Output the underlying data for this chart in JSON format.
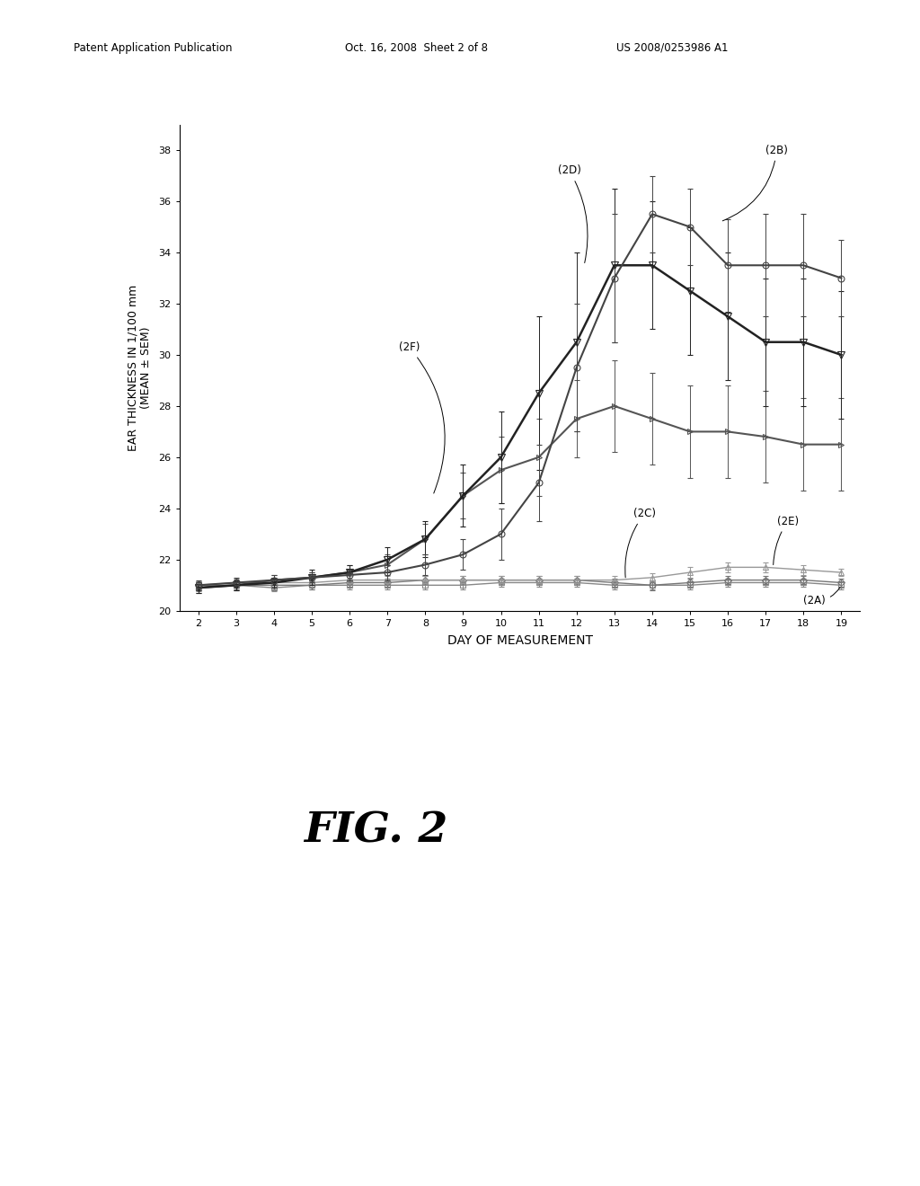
{
  "days": [
    2,
    3,
    4,
    5,
    6,
    7,
    8,
    9,
    10,
    11,
    12,
    13,
    14,
    15,
    16,
    17,
    18,
    19
  ],
  "series": {
    "2A": {
      "values": [
        20.9,
        21.0,
        20.9,
        21.0,
        21.0,
        21.0,
        21.0,
        21.0,
        21.1,
        21.1,
        21.1,
        21.0,
        21.0,
        21.0,
        21.1,
        21.1,
        21.1,
        21.0
      ],
      "errors": [
        0.15,
        0.15,
        0.15,
        0.15,
        0.15,
        0.15,
        0.15,
        0.15,
        0.15,
        0.15,
        0.15,
        0.15,
        0.15,
        0.15,
        0.15,
        0.15,
        0.15,
        0.15
      ],
      "marker": "s",
      "color": "#888888",
      "linewidth": 1.0,
      "markersize": 4,
      "label": "(2A)"
    },
    "2B": {
      "values": [
        21.0,
        21.1,
        21.2,
        21.3,
        21.4,
        21.5,
        21.8,
        22.2,
        23.0,
        25.0,
        29.5,
        33.0,
        35.5,
        35.0,
        33.5,
        33.5,
        33.5,
        33.0
      ],
      "errors": [
        0.2,
        0.2,
        0.2,
        0.2,
        0.2,
        0.3,
        0.4,
        0.6,
        1.0,
        1.5,
        2.5,
        2.5,
        1.5,
        1.5,
        1.8,
        2.0,
        2.0,
        1.5
      ],
      "marker": "o",
      "color": "#444444",
      "linewidth": 1.5,
      "markersize": 5,
      "label": "(2B)"
    },
    "2C": {
      "values": [
        21.0,
        21.0,
        21.0,
        21.0,
        21.1,
        21.1,
        21.2,
        21.2,
        21.2,
        21.2,
        21.2,
        21.1,
        21.0,
        21.1,
        21.2,
        21.2,
        21.2,
        21.1
      ],
      "errors": [
        0.15,
        0.15,
        0.15,
        0.15,
        0.15,
        0.15,
        0.15,
        0.15,
        0.15,
        0.15,
        0.15,
        0.15,
        0.2,
        0.15,
        0.15,
        0.15,
        0.15,
        0.15
      ],
      "marker": "D",
      "color": "#777777",
      "linewidth": 1.0,
      "markersize": 4,
      "label": "(2C)"
    },
    "2D": {
      "values": [
        20.9,
        21.0,
        21.1,
        21.3,
        21.5,
        22.0,
        22.8,
        24.5,
        26.0,
        28.5,
        30.5,
        33.5,
        33.5,
        32.5,
        31.5,
        30.5,
        30.5,
        30.0
      ],
      "errors": [
        0.2,
        0.2,
        0.2,
        0.3,
        0.3,
        0.5,
        0.7,
        1.2,
        1.8,
        3.0,
        3.5,
        3.0,
        2.5,
        2.5,
        2.5,
        2.5,
        2.5,
        2.5
      ],
      "marker": "v",
      "color": "#222222",
      "linewidth": 1.8,
      "markersize": 6,
      "label": "(2D)"
    },
    "2E": {
      "values": [
        21.0,
        21.1,
        21.1,
        21.1,
        21.2,
        21.2,
        21.2,
        21.2,
        21.2,
        21.2,
        21.2,
        21.2,
        21.3,
        21.5,
        21.7,
        21.7,
        21.6,
        21.5
      ],
      "errors": [
        0.15,
        0.15,
        0.15,
        0.15,
        0.15,
        0.15,
        0.15,
        0.15,
        0.15,
        0.15,
        0.15,
        0.15,
        0.15,
        0.2,
        0.2,
        0.2,
        0.2,
        0.15
      ],
      "marker": "^",
      "color": "#999999",
      "linewidth": 1.0,
      "markersize": 4,
      "label": "(2E)"
    },
    "2F": {
      "values": [
        20.9,
        21.0,
        21.2,
        21.3,
        21.5,
        21.8,
        22.8,
        24.5,
        25.5,
        26.0,
        27.5,
        28.0,
        27.5,
        27.0,
        27.0,
        26.8,
        26.5,
        26.5
      ],
      "errors": [
        0.2,
        0.2,
        0.2,
        0.2,
        0.3,
        0.4,
        0.6,
        0.9,
        1.3,
        1.5,
        1.5,
        1.8,
        1.8,
        1.8,
        1.8,
        1.8,
        1.8,
        1.8
      ],
      "marker": ">",
      "color": "#555555",
      "linewidth": 1.5,
      "markersize": 5,
      "label": "(2F)"
    }
  },
  "xlabel": "DAY OF MEASUREMENT",
  "ylabel_line1": "EAR THICKNESS IN 1/100 mm",
  "ylabel_line2": "(MEAN ± SEM)",
  "xlim": [
    1.5,
    19.5
  ],
  "ylim": [
    20,
    39
  ],
  "yticks": [
    20,
    22,
    24,
    26,
    28,
    30,
    32,
    34,
    36,
    38
  ],
  "xticks": [
    2,
    3,
    4,
    5,
    6,
    7,
    8,
    9,
    10,
    11,
    12,
    13,
    14,
    15,
    16,
    17,
    18,
    19
  ],
  "fig_title": "FIG. 2",
  "header_left": "Patent Application Publication",
  "header_center": "Oct. 16, 2008  Sheet 2 of 8",
  "header_right": "US 2008/0253986 A1",
  "background_color": "#ffffff",
  "ann_2A": {
    "text": "(2A)",
    "tip_x": 19.0,
    "tip_y": 21.0,
    "txt_x": 18.0,
    "txt_y": 20.4,
    "rad": 0.3
  },
  "ann_2B": {
    "text": "(2B)",
    "tip_x": 15.8,
    "tip_y": 35.2,
    "txt_x": 17.0,
    "txt_y": 38.0,
    "rad": -0.3
  },
  "ann_2C": {
    "text": "(2C)",
    "tip_x": 13.3,
    "tip_y": 21.2,
    "txt_x": 13.5,
    "txt_y": 23.8,
    "rad": 0.2
  },
  "ann_2D": {
    "text": "(2D)",
    "tip_x": 12.2,
    "tip_y": 33.5,
    "txt_x": 11.5,
    "txt_y": 37.2,
    "rad": -0.2
  },
  "ann_2E": {
    "text": "(2E)",
    "tip_x": 17.2,
    "tip_y": 21.7,
    "txt_x": 17.3,
    "txt_y": 23.5,
    "rad": 0.15
  },
  "ann_2F": {
    "text": "(2F)",
    "tip_x": 8.2,
    "tip_y": 24.5,
    "txt_x": 7.3,
    "txt_y": 30.3,
    "rad": -0.3
  }
}
